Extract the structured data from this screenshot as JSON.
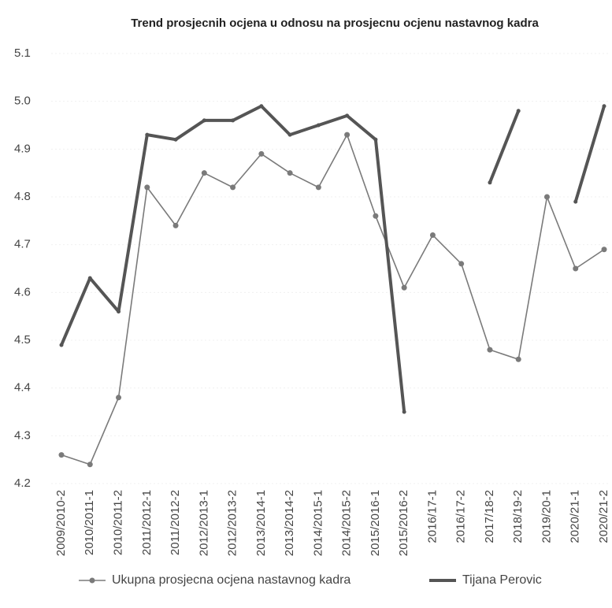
{
  "chart_data": {
    "type": "line",
    "title": "Trend prosjecnih ocjena u odnosu na prosjecnu ocjenu nastavnog kadra",
    "categories": [
      "2009/2010-2",
      "2010/2011-1",
      "2010/2011-2",
      "2011/2012-1",
      "2011/2012-2",
      "2012/2013-1",
      "2012/2013-2",
      "2013/2014-1",
      "2013/2014-2",
      "2014/2015-1",
      "2014/2015-2",
      "2015/2016-1",
      "2015/2016-2",
      "2016/17-1",
      "2016/17-2",
      "2017/18-2",
      "2018/19-2",
      "2019/20-1",
      "2020/21-1",
      "2020/21-2"
    ],
    "series": [
      {
        "name": "Ukupna prosjecna ocjena nastavnog kadra",
        "color": "#7a7a7a",
        "values": [
          4.26,
          4.24,
          4.38,
          4.82,
          4.74,
          4.85,
          4.82,
          4.89,
          4.85,
          4.82,
          4.93,
          4.76,
          4.61,
          4.72,
          4.66,
          4.48,
          4.46,
          4.8,
          4.65,
          4.69
        ]
      },
      {
        "name": "Tijana Perovic",
        "color": "#555555",
        "values": [
          4.49,
          4.63,
          4.56,
          4.93,
          4.92,
          4.96,
          4.96,
          4.99,
          4.93,
          4.95,
          4.97,
          4.92,
          4.35,
          null,
          null,
          4.83,
          4.98,
          null,
          4.79,
          4.99
        ]
      }
    ],
    "ylim": [
      4.2,
      5.1
    ],
    "yticks": [
      4.2,
      4.3,
      4.4,
      4.5,
      4.6,
      4.7,
      4.8,
      4.9,
      {
        "value": 5,
        "label": "5.0"
      },
      5.1
    ],
    "grid": true,
    "legend": "bottom"
  }
}
